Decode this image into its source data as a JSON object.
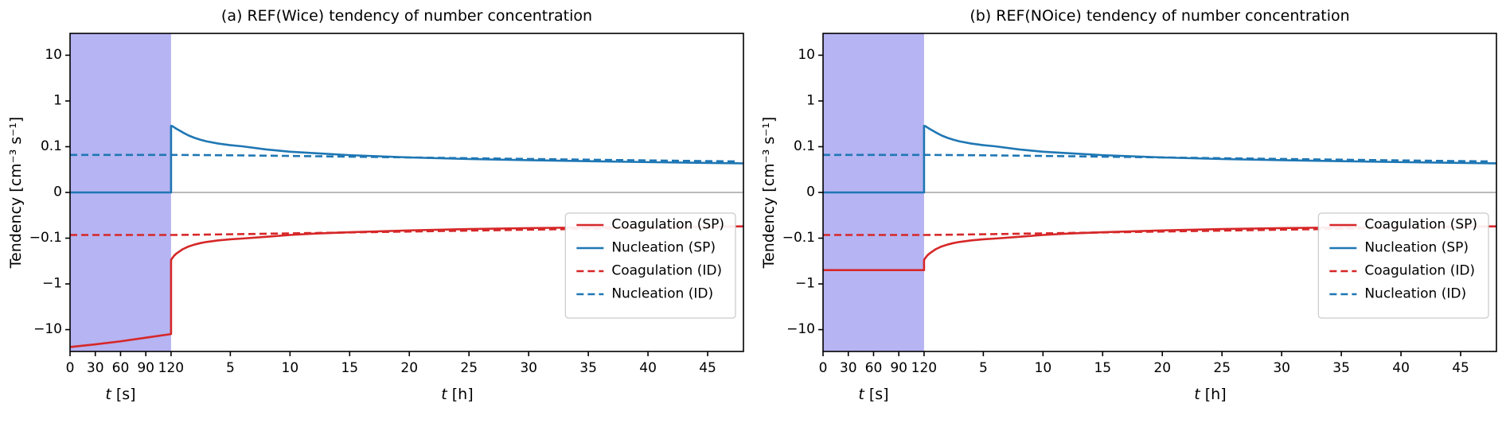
{
  "figure": {
    "background": "#ffffff",
    "accent_red": "#d62728",
    "accent_blue": "#1f77b4"
  },
  "chart_data": [
    {
      "type": "line",
      "title": "(a) REF(Wice) tendency of number concentration",
      "ylabel": "Tendency [cm⁻³ s⁻¹]",
      "x_axis": {
        "seconds": {
          "var": "t",
          "unit": "[s]",
          "ticks": [
            0,
            30,
            60,
            90,
            120
          ],
          "max": 120,
          "fraction": 0.15
        },
        "hours": {
          "var": "t",
          "unit": "[h]",
          "ticks": [
            5,
            10,
            15,
            20,
            25,
            30,
            35,
            40,
            45
          ],
          "min": 0.0333,
          "max": 48
        }
      },
      "y_axis": {
        "scale": "symlog",
        "linthresh": 0.1,
        "ymax": 30,
        "ymin": -30,
        "ticks": [
          {
            "v": 10,
            "label": "10"
          },
          {
            "v": 1,
            "label": "1"
          },
          {
            "v": 0.1,
            "label": "0.1"
          },
          {
            "v": 0,
            "label": "0"
          },
          {
            "v": -0.1,
            "label": "−0.1"
          },
          {
            "v": -1,
            "label": "−1"
          },
          {
            "v": -10,
            "label": "−10"
          }
        ]
      },
      "shade": {
        "from_s": 0,
        "to_s": 120,
        "color": "#b6b4f2"
      },
      "zero_line_color": "#b0b0b0",
      "series": [
        {
          "name": "Coagulation (SP)",
          "color": "#d62728",
          "style": "solid",
          "points_s": [
            [
              0,
              -24
            ],
            [
              30,
              -21
            ],
            [
              60,
              -18
            ],
            [
              90,
              -15
            ],
            [
              120,
              -12.5
            ]
          ],
          "points_h": [
            [
              0.033,
              -0.3
            ],
            [
              0.15,
              -0.27
            ],
            [
              0.3,
              -0.24
            ],
            [
              0.5,
              -0.215
            ],
            [
              0.8,
              -0.19
            ],
            [
              1,
              -0.175
            ],
            [
              1.5,
              -0.152
            ],
            [
              2,
              -0.138
            ],
            [
              2.5,
              -0.128
            ],
            [
              3,
              -0.121
            ],
            [
              4,
              -0.112
            ],
            [
              5,
              -0.106
            ],
            [
              6,
              -0.102
            ],
            [
              8,
              -0.097
            ],
            [
              10,
              -0.093
            ],
            [
              12,
              -0.09
            ],
            [
              15,
              -0.087
            ],
            [
              20,
              -0.083
            ],
            [
              25,
              -0.08
            ],
            [
              30,
              -0.078
            ],
            [
              35,
              -0.0765
            ],
            [
              40,
              -0.0755
            ],
            [
              44,
              -0.0748
            ],
            [
              48,
              -0.0742
            ]
          ]
        },
        {
          "name": "Nucleation (SP)",
          "color": "#1f77b4",
          "style": "solid",
          "points_s": [
            [
              0,
              0
            ],
            [
              120,
              0
            ]
          ],
          "points_h": [
            [
              0.033,
              0.285
            ],
            [
              0.12,
              0.283
            ],
            [
              0.25,
              0.27
            ],
            [
              0.5,
              0.245
            ],
            [
              0.8,
              0.221
            ],
            [
              1,
              0.206
            ],
            [
              1.5,
              0.176
            ],
            [
              2,
              0.156
            ],
            [
              2.5,
              0.142
            ],
            [
              3,
              0.131
            ],
            [
              4,
              0.117
            ],
            [
              5,
              0.108
            ],
            [
              6,
              0.102
            ],
            [
              8,
              0.094
            ],
            [
              10,
              0.089
            ],
            [
              12,
              0.086
            ],
            [
              15,
              0.0815
            ],
            [
              20,
              0.0765
            ],
            [
              25,
              0.073
            ],
            [
              30,
              0.0705
            ],
            [
              35,
              0.0683
            ],
            [
              40,
              0.0663
            ],
            [
              44,
              0.0649
            ],
            [
              48,
              0.0635
            ]
          ]
        },
        {
          "name": "Coagulation (ID)",
          "color": "#d62728",
          "style": "dashed",
          "points_s": [
            [
              0,
              -0.093
            ],
            [
              120,
              -0.093
            ]
          ],
          "points_h": [
            [
              0.033,
              -0.093
            ],
            [
              2,
              -0.0925
            ],
            [
              5,
              -0.0915
            ],
            [
              10,
              -0.0895
            ],
            [
              15,
              -0.0875
            ],
            [
              20,
              -0.0855
            ],
            [
              25,
              -0.0835
            ],
            [
              30,
              -0.0815
            ],
            [
              35,
              -0.0795
            ],
            [
              40,
              -0.0775
            ],
            [
              44,
              -0.076
            ],
            [
              47.5,
              -0.075
            ]
          ]
        },
        {
          "name": "Nucleation (ID)",
          "color": "#1f77b4",
          "style": "dashed",
          "points_s": [
            [
              0,
              0.082
            ],
            [
              120,
              0.082
            ]
          ],
          "points_h": [
            [
              0.033,
              0.082
            ],
            [
              2,
              0.0818
            ],
            [
              5,
              0.0812
            ],
            [
              10,
              0.0798
            ],
            [
              15,
              0.0782
            ],
            [
              20,
              0.0765
            ],
            [
              25,
              0.0748
            ],
            [
              30,
              0.0732
            ],
            [
              35,
              0.0716
            ],
            [
              40,
              0.07
            ],
            [
              44,
              0.0688
            ],
            [
              47.5,
              0.0678
            ]
          ]
        }
      ],
      "legend_entries": [
        "Coagulation (SP)",
        "Nucleation (SP)",
        "Coagulation (ID)",
        "Nucleation (ID)"
      ],
      "legend_position": "lower right"
    },
    {
      "type": "line",
      "title": "(b) REF(NOice) tendency of number concentration",
      "ylabel": "Tendency [cm⁻³ s⁻¹]",
      "x_axis": {
        "seconds": {
          "var": "t",
          "unit": "[s]",
          "ticks": [
            0,
            30,
            60,
            90,
            120
          ],
          "max": 120,
          "fraction": 0.15
        },
        "hours": {
          "var": "t",
          "unit": "[h]",
          "ticks": [
            5,
            10,
            15,
            20,
            25,
            30,
            35,
            40,
            45
          ],
          "min": 0.0333,
          "max": 48
        }
      },
      "y_axis": {
        "scale": "symlog",
        "linthresh": 0.1,
        "ymax": 30,
        "ymin": -30,
        "ticks": [
          {
            "v": 10,
            "label": "10"
          },
          {
            "v": 1,
            "label": "1"
          },
          {
            "v": 0.1,
            "label": "0.1"
          },
          {
            "v": 0,
            "label": "0"
          },
          {
            "v": -0.1,
            "label": "−0.1"
          },
          {
            "v": -1,
            "label": "−1"
          },
          {
            "v": -10,
            "label": "−10"
          }
        ]
      },
      "shade": {
        "from_s": 0,
        "to_s": 120,
        "color": "#b6b4f2"
      },
      "zero_line_color": "#b0b0b0",
      "series": [
        {
          "name": "Coagulation (SP)",
          "color": "#d62728",
          "style": "solid",
          "points_s": [
            [
              0,
              -0.5
            ],
            [
              120,
              -0.5
            ]
          ],
          "points_h": [
            [
              0.033,
              -0.3
            ],
            [
              0.15,
              -0.27
            ],
            [
              0.3,
              -0.24
            ],
            [
              0.5,
              -0.215
            ],
            [
              0.8,
              -0.19
            ],
            [
              1,
              -0.175
            ],
            [
              1.5,
              -0.152
            ],
            [
              2,
              -0.138
            ],
            [
              2.5,
              -0.128
            ],
            [
              3,
              -0.121
            ],
            [
              4,
              -0.112
            ],
            [
              5,
              -0.106
            ],
            [
              6,
              -0.102
            ],
            [
              8,
              -0.097
            ],
            [
              10,
              -0.093
            ],
            [
              12,
              -0.09
            ],
            [
              15,
              -0.087
            ],
            [
              20,
              -0.083
            ],
            [
              25,
              -0.08
            ],
            [
              30,
              -0.078
            ],
            [
              35,
              -0.0765
            ],
            [
              40,
              -0.0755
            ],
            [
              44,
              -0.0748
            ],
            [
              48,
              -0.0742
            ]
          ]
        },
        {
          "name": "Nucleation (SP)",
          "color": "#1f77b4",
          "style": "solid",
          "points_s": [
            [
              0,
              0
            ],
            [
              120,
              0
            ]
          ],
          "points_h": [
            [
              0.033,
              0.285
            ],
            [
              0.12,
              0.283
            ],
            [
              0.25,
              0.27
            ],
            [
              0.5,
              0.245
            ],
            [
              0.8,
              0.221
            ],
            [
              1,
              0.206
            ],
            [
              1.5,
              0.176
            ],
            [
              2,
              0.156
            ],
            [
              2.5,
              0.142
            ],
            [
              3,
              0.131
            ],
            [
              4,
              0.117
            ],
            [
              5,
              0.108
            ],
            [
              6,
              0.102
            ],
            [
              8,
              0.094
            ],
            [
              10,
              0.089
            ],
            [
              12,
              0.086
            ],
            [
              15,
              0.0815
            ],
            [
              20,
              0.0765
            ],
            [
              25,
              0.073
            ],
            [
              30,
              0.0705
            ],
            [
              35,
              0.0683
            ],
            [
              40,
              0.0663
            ],
            [
              44,
              0.0649
            ],
            [
              48,
              0.0635
            ]
          ]
        },
        {
          "name": "Coagulation (ID)",
          "color": "#d62728",
          "style": "dashed",
          "points_s": [
            [
              0,
              -0.093
            ],
            [
              120,
              -0.093
            ]
          ],
          "points_h": [
            [
              0.033,
              -0.093
            ],
            [
              2,
              -0.0925
            ],
            [
              5,
              -0.0915
            ],
            [
              10,
              -0.0895
            ],
            [
              15,
              -0.0875
            ],
            [
              20,
              -0.0855
            ],
            [
              25,
              -0.0835
            ],
            [
              30,
              -0.0815
            ],
            [
              35,
              -0.0795
            ],
            [
              40,
              -0.0775
            ],
            [
              44,
              -0.076
            ],
            [
              47.5,
              -0.075
            ]
          ]
        },
        {
          "name": "Nucleation (ID)",
          "color": "#1f77b4",
          "style": "dashed",
          "points_s": [
            [
              0,
              0.082
            ],
            [
              120,
              0.082
            ]
          ],
          "points_h": [
            [
              0.033,
              0.082
            ],
            [
              2,
              0.0818
            ],
            [
              5,
              0.0812
            ],
            [
              10,
              0.0798
            ],
            [
              15,
              0.0782
            ],
            [
              20,
              0.0765
            ],
            [
              25,
              0.0748
            ],
            [
              30,
              0.0732
            ],
            [
              35,
              0.0716
            ],
            [
              40,
              0.07
            ],
            [
              44,
              0.0688
            ],
            [
              47.5,
              0.0678
            ]
          ]
        }
      ],
      "legend_entries": [
        "Coagulation (SP)",
        "Nucleation (SP)",
        "Coagulation (ID)",
        "Nucleation (ID)"
      ],
      "legend_position": "lower right"
    }
  ]
}
